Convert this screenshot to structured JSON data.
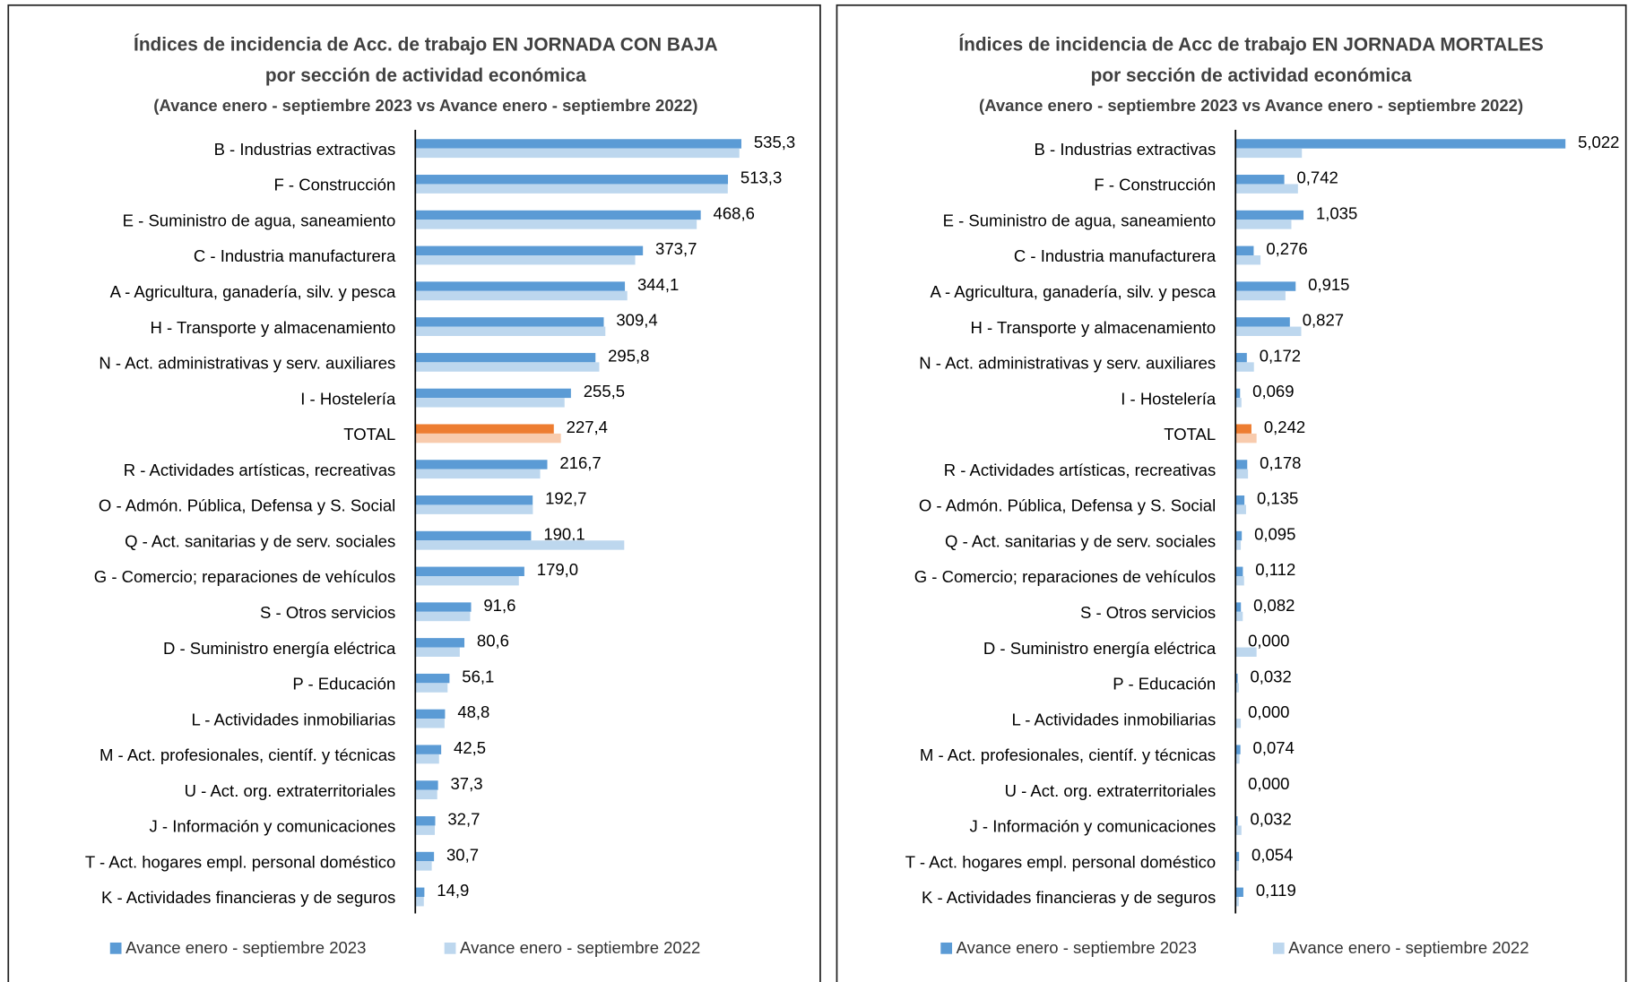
{
  "chart_data": [
    {
      "type": "bar",
      "orientation": "horizontal",
      "title": [
        "Índices de incidencia de Acc. de trabajo EN JORNADA CON BAJA",
        "por sección de actividad económica"
      ],
      "subtitle": "(Avance enero - septiembre 2023 vs Avance enero - septiembre 2022)",
      "categories": [
        "B - Industrias extractivas",
        "F - Construcción",
        "E - Suministro de agua, saneamiento",
        "C - Industria manufacturera",
        "A - Agricultura, ganadería, silv. y pesca",
        "H - Transporte y almacenamiento",
        "N - Act. administrativas y serv. auxiliares",
        "I - Hostelería",
        "TOTAL",
        "R - Actividades artísticas, recreativas",
        "O - Admón. Pública, Defensa y S. Social",
        "Q - Act. sanitarias y de serv. sociales",
        "G - Comercio; reparaciones de vehículos",
        "S - Otros servicios",
        "D - Suministro energía eléctrica",
        "P - Educación",
        "L - Actividades inmobiliarias",
        "M - Act. profesionales, científ. y técnicas",
        "U - Act. org. extraterritoriales",
        "J - Información y comunicaciones",
        "T - Act. hogares empl. personal doméstico",
        "K - Actividades financieras y de seguros"
      ],
      "xlim": [
        0,
        600
      ],
      "series": [
        {
          "name": "Avance enero - septiembre 2023",
          "color": "#5b9bd5",
          "colors": [
            "#5b9bd5",
            "#5b9bd5",
            "#5b9bd5",
            "#5b9bd5",
            "#5b9bd5",
            "#5b9bd5",
            "#5b9bd5",
            "#5b9bd5",
            "#ed7d31",
            "#5b9bd5",
            "#5b9bd5",
            "#5b9bd5",
            "#5b9bd5",
            "#5b9bd5",
            "#5b9bd5",
            "#5b9bd5",
            "#5b9bd5",
            "#5b9bd5",
            "#5b9bd5",
            "#5b9bd5",
            "#5b9bd5",
            "#5b9bd5"
          ],
          "values": [
            535.3,
            513.3,
            468.6,
            373.7,
            344.1,
            309.4,
            295.8,
            255.5,
            227.4,
            216.7,
            192.7,
            190.1,
            179.0,
            91.6,
            80.6,
            56.1,
            48.8,
            42.5,
            37.3,
            32.7,
            30.7,
            14.9
          ],
          "value_labels": [
            "535,3",
            "513,3",
            "468,6",
            "373,7",
            "344,1",
            "309,4",
            "295,8",
            "255,5",
            "227,4",
            "216,7",
            "192,7",
            "190,1",
            "179,0",
            "91,6",
            "80,6",
            "56,1",
            "48,8",
            "42,5",
            "37,3",
            "32,7",
            "30,7",
            "14,9"
          ]
        },
        {
          "name": "Avance enero - septiembre 2022",
          "color": "#bdd7ee",
          "colors": [
            "#bdd7ee",
            "#bdd7ee",
            "#bdd7ee",
            "#bdd7ee",
            "#bdd7ee",
            "#bdd7ee",
            "#bdd7ee",
            "#bdd7ee",
            "#f8cbad",
            "#bdd7ee",
            "#bdd7ee",
            "#bdd7ee",
            "#bdd7ee",
            "#bdd7ee",
            "#bdd7ee",
            "#bdd7ee",
            "#bdd7ee",
            "#bdd7ee",
            "#bdd7ee",
            "#bdd7ee",
            "#bdd7ee",
            "#bdd7ee"
          ],
          "values": [
            532,
            513,
            462,
            361,
            348,
            312,
            302,
            245,
            239,
            205,
            193,
            343,
            170,
            90,
            73,
            53,
            48,
            39,
            36,
            32,
            27,
            14
          ]
        }
      ]
    },
    {
      "type": "bar",
      "orientation": "horizontal",
      "title": [
        "Índices de incidencia de Acc de trabajo EN JORNADA MORTALES",
        "por sección de actividad económica"
      ],
      "subtitle": "(Avance enero - septiembre 2023 vs Avance enero - septiembre 2022)",
      "categories": [
        "B - Industrias extractivas",
        "F - Construcción",
        "E - Suministro de agua, saneamiento",
        "C - Industria manufacturera",
        "A - Agricultura, ganadería, silv. y pesca",
        "H - Transporte y almacenamiento",
        "N - Act. administrativas y serv. auxiliares",
        "I - Hostelería",
        "TOTAL",
        "R - Actividades artísticas, recreativas",
        "O - Admón. Pública, Defensa y S. Social",
        "Q - Act. sanitarias y de serv. sociales",
        "G - Comercio; reparaciones de vehículos",
        "S - Otros servicios",
        "D - Suministro energía eléctrica",
        "P - Educación",
        "L - Actividades inmobiliarias",
        "M - Act. profesionales, científ. y técnicas",
        "U - Act. org. extraterritoriales",
        "J - Información y comunicaciones",
        "T - Act. hogares empl. personal doméstico",
        "K - Actividades financieras y de seguros"
      ],
      "xlim": [
        0,
        5.5
      ],
      "series": [
        {
          "name": "Avance enero - septiembre 2023",
          "color": "#5b9bd5",
          "colors": [
            "#5b9bd5",
            "#5b9bd5",
            "#5b9bd5",
            "#5b9bd5",
            "#5b9bd5",
            "#5b9bd5",
            "#5b9bd5",
            "#5b9bd5",
            "#ed7d31",
            "#5b9bd5",
            "#5b9bd5",
            "#5b9bd5",
            "#5b9bd5",
            "#5b9bd5",
            "#5b9bd5",
            "#5b9bd5",
            "#5b9bd5",
            "#5b9bd5",
            "#5b9bd5",
            "#5b9bd5",
            "#5b9bd5",
            "#5b9bd5"
          ],
          "values": [
            5.022,
            0.742,
            1.035,
            0.276,
            0.915,
            0.827,
            0.172,
            0.069,
            0.242,
            0.178,
            0.135,
            0.095,
            0.112,
            0.082,
            0,
            0.032,
            0,
            0.074,
            0,
            0.032,
            0.054,
            0.119
          ],
          "value_labels": [
            "5,022",
            "0,742",
            "1,035",
            "0,276",
            "0,915",
            "0,827",
            "0,172",
            "0,069",
            "0,242",
            "0,178",
            "0,135",
            "0,095",
            "0,112",
            "0,082",
            "0,000",
            "0,032",
            "0,000",
            "0,074",
            "0,000",
            "0,032",
            "0,054",
            "0,119"
          ]
        },
        {
          "name": "Avance enero - septiembre 2022",
          "color": "#bdd7ee",
          "colors": [
            "#bdd7ee",
            "#bdd7ee",
            "#bdd7ee",
            "#bdd7ee",
            "#bdd7ee",
            "#bdd7ee",
            "#bdd7ee",
            "#bdd7ee",
            "#f8cbad",
            "#bdd7ee",
            "#bdd7ee",
            "#bdd7ee",
            "#bdd7ee",
            "#bdd7ee",
            "#bdd7ee",
            "#bdd7ee",
            "#bdd7ee",
            "#bdd7ee",
            "#bdd7ee",
            "#bdd7ee",
            "#bdd7ee",
            "#bdd7ee"
          ],
          "values": [
            1.01,
            0.95,
            0.85,
            0.38,
            0.76,
            1.0,
            0.28,
            0.09,
            0.32,
            0.19,
            0.16,
            0.08,
            0.13,
            0.11,
            0.32,
            0.05,
            0.08,
            0.06,
            0,
            0.09,
            0.05,
            0.05
          ]
        }
      ]
    }
  ]
}
